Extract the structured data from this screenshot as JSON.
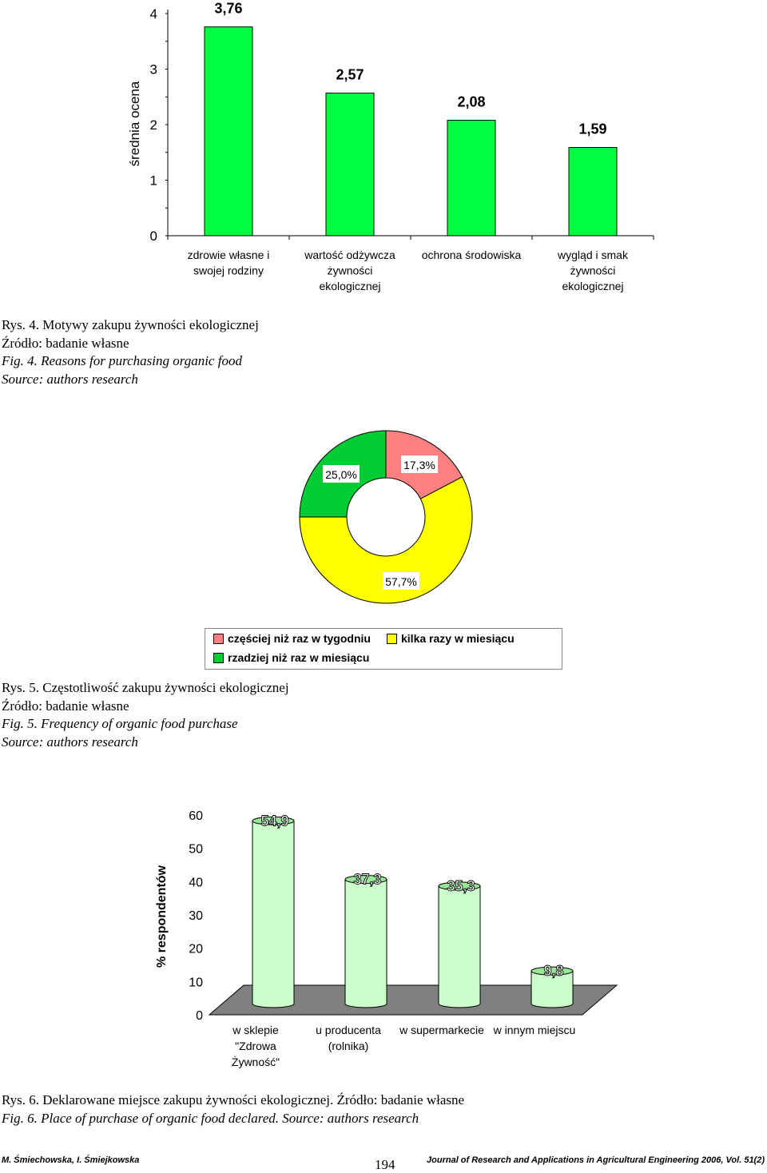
{
  "charts": {
    "fig4": {
      "ylabel": "średnia ocena",
      "yticks": [
        "0",
        "1",
        "2",
        "3",
        "4"
      ],
      "ylim": [
        0,
        4
      ],
      "bar_color": "#00ff40",
      "bars": [
        {
          "label_lines": [
            "zdrowie własne i",
            "swojej rodziny"
          ],
          "value": 3.76,
          "value_label": "3,76"
        },
        {
          "label_lines": [
            "wartość odżywcza",
            "żywności",
            "ekologicznej"
          ],
          "value": 2.57,
          "value_label": "2,57"
        },
        {
          "label_lines": [
            "ochrona środowiska"
          ],
          "value": 2.08,
          "value_label": "2,08"
        },
        {
          "label_lines": [
            "wygląd i smak",
            "żywności",
            "ekologicznej"
          ],
          "value": 1.59,
          "value_label": "1,59"
        }
      ]
    },
    "fig5": {
      "slices": [
        {
          "name": "częściej niż raz w tygodniu",
          "value": 17.3,
          "value_label": "17,3%",
          "color": "#ff8080"
        },
        {
          "name": "kilka razy w miesiącu",
          "value": 57.7,
          "value_label": "57,7%",
          "color": "#ffff00"
        },
        {
          "name": "rzadziej niż raz w miesiącu",
          "value": 25.0,
          "value_label": "25,0%",
          "color": "#00cc33"
        }
      ]
    },
    "fig6": {
      "ylabel": "% respondentów",
      "yticks": [
        "0",
        "10",
        "20",
        "30",
        "40",
        "50",
        "60"
      ],
      "ylim": [
        0,
        60
      ],
      "bar_color": "#ccffcc",
      "bars": [
        {
          "label_lines": [
            "w sklepie",
            "\"Zdrowa",
            "Żywność\""
          ],
          "value": 54.9,
          "value_label": "54,9"
        },
        {
          "label_lines": [
            "u producenta",
            "(rolnika)"
          ],
          "value": 37.3,
          "value_label": "37,3"
        },
        {
          "label_lines": [
            "w supermarkecie"
          ],
          "value": 35.3,
          "value_label": "35,3"
        },
        {
          "label_lines": [
            "w innym miejscu"
          ],
          "value": 9.8,
          "value_label": "9,8"
        }
      ]
    }
  },
  "chart_data": [
    {
      "type": "bar",
      "title": "",
      "xlabel": "",
      "ylabel": "średnia ocena",
      "ylim": [
        0,
        4
      ],
      "categories": [
        "zdrowie własne i swojej rodziny",
        "wartość odżywcza żywności ekologicznej",
        "ochrona środowiska",
        "wygląd i smak żywności ekologicznej"
      ],
      "values": [
        3.76,
        2.57,
        2.08,
        1.59
      ]
    },
    {
      "type": "pie",
      "title": "",
      "categories": [
        "częściej niż raz w tygodniu",
        "kilka razy w miesiącu",
        "rzadziej niż raz w miesiącu"
      ],
      "values": [
        17.3,
        57.7,
        25.0
      ]
    },
    {
      "type": "bar",
      "title": "",
      "xlabel": "",
      "ylabel": "% respondentów",
      "ylim": [
        0,
        60
      ],
      "categories": [
        "w sklepie \"Zdrowa Żywność\"",
        "u producenta (rolnika)",
        "w supermarkecie",
        "w innym miejscu"
      ],
      "values": [
        54.9,
        37.3,
        35.3,
        9.8
      ]
    }
  ],
  "captions": {
    "fig4": {
      "pl_title": "Rys. 4. Motywy zakupu żywności ekologicznej",
      "pl_source": "Źródło: badanie własne",
      "en_title": "Fig. 4. Reasons for purchasing organic food",
      "en_source": "Source: authors research"
    },
    "fig5": {
      "pl_title": "Rys. 5. Częstotliwość zakupu żywności ekologicznej",
      "pl_source": "Źródło: badanie własne",
      "en_title": "Fig. 5. Frequency of organic food purchase",
      "en_source": "Source: authors research"
    },
    "fig6": {
      "pl_line": "Rys. 6. Deklarowane miejsce zakupu żywności ekologicznej. Źródło: badanie własne",
      "en_line": "Fig. 6. Place of purchase of organic food declared. Source: authors research"
    }
  },
  "footer": {
    "authors": "M. Śmiechowska, I. Śmiejkowska",
    "page_number": "194",
    "journal": "Journal of Research and Applications in Agricultural Engineering 2006, Vol. 51(2)"
  }
}
